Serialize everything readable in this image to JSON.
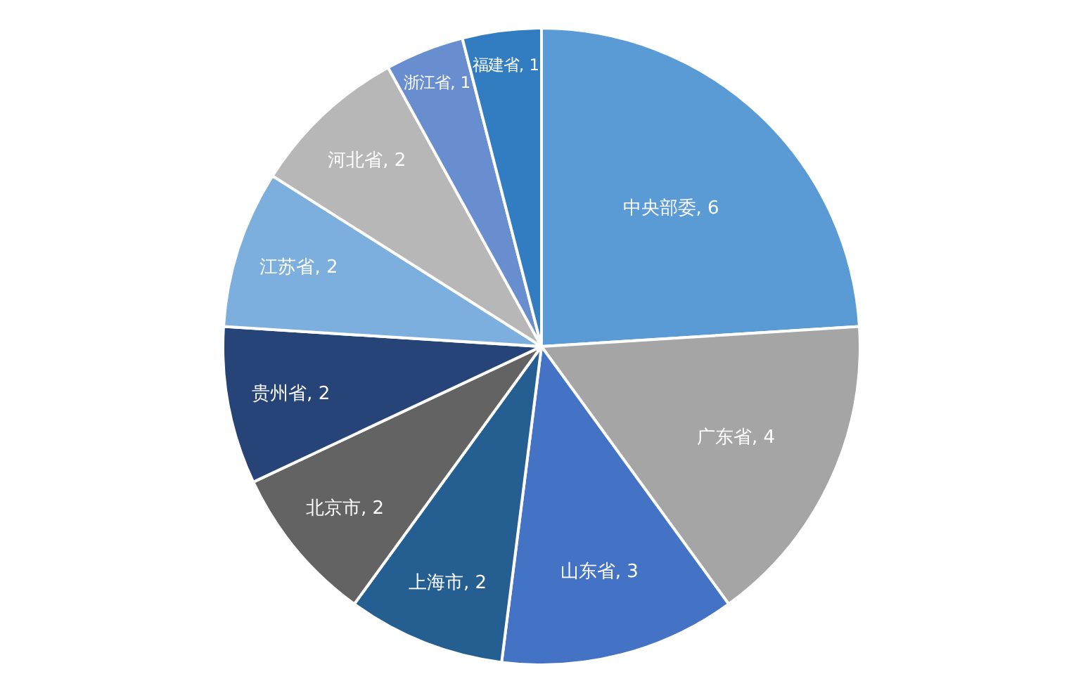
{
  "chart_data": {
    "type": "pie",
    "categories": [
      "中央部委",
      "广东省",
      "山东省",
      "上海市",
      "北京市",
      "贵州省",
      "江苏省",
      "河北省",
      "浙江省",
      "福建省"
    ],
    "values": [
      6,
      4,
      3,
      2,
      2,
      2,
      2,
      2,
      1,
      1
    ],
    "colors": [
      "#5b9bd5",
      "#a5a5a5",
      "#4472c4",
      "#255e91",
      "#636363",
      "#264478",
      "#7cafdd",
      "#b7b7b7",
      "#698ed0",
      "#327dc2"
    ],
    "value_labels": [
      ", 6",
      ", 4",
      ", 3",
      ", 2",
      ", 2",
      ", 2",
      ", 2",
      ", 2",
      ", 1",
      ", 1"
    ],
    "legend": false
  }
}
